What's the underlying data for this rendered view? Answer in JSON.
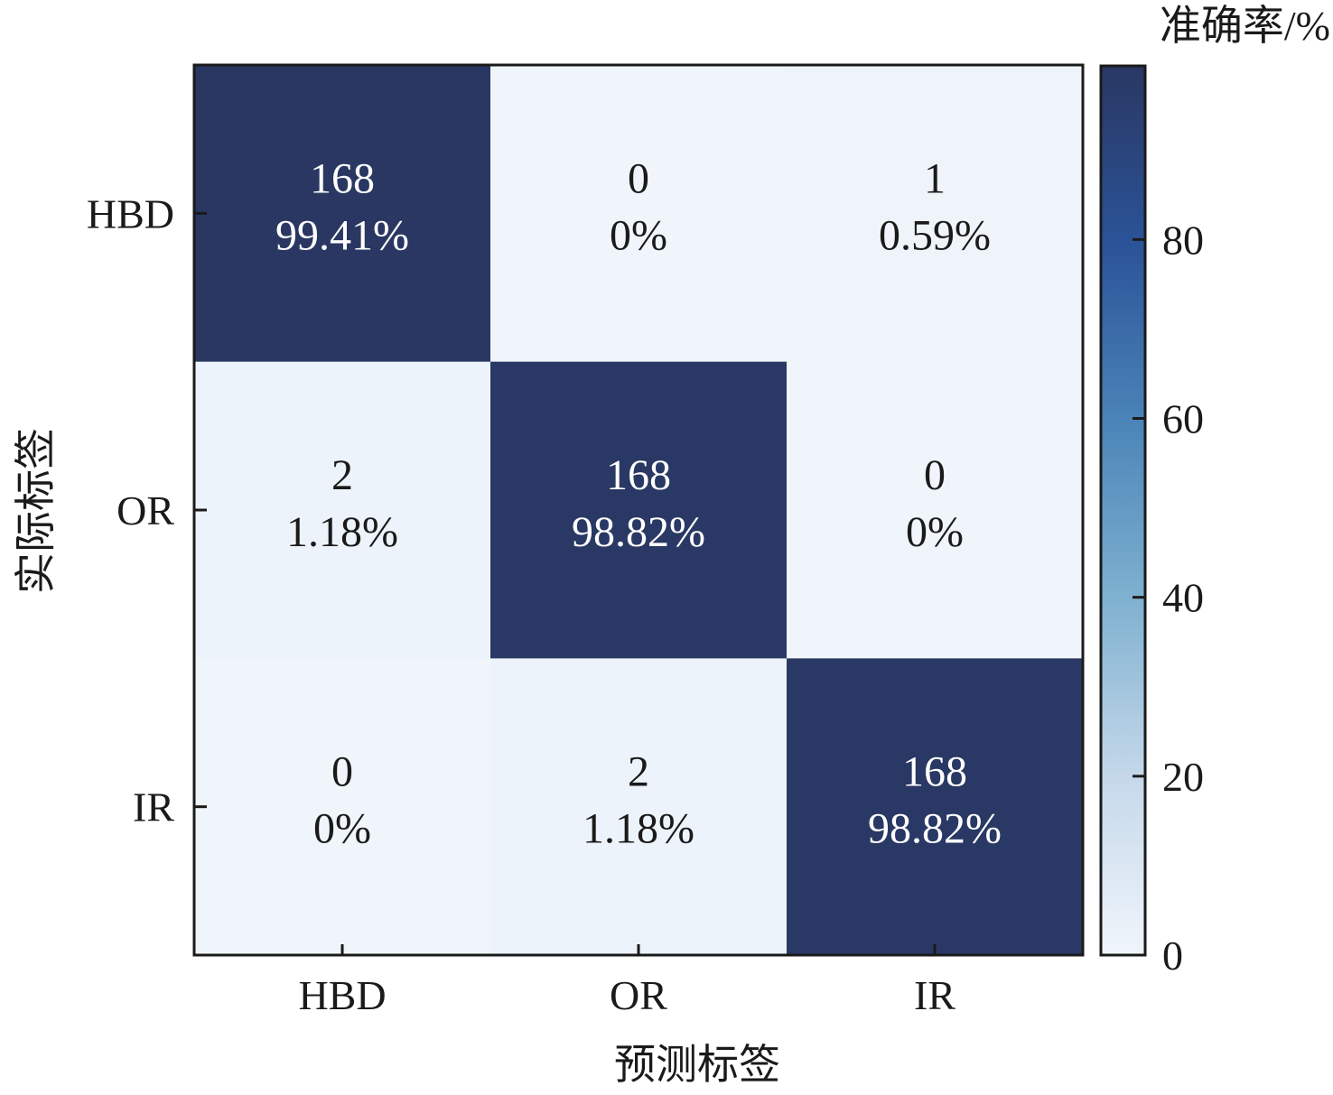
{
  "chart_data": {
    "type": "heatmap",
    "title": "",
    "xlabel": "预测标签",
    "ylabel": "实际标签",
    "x_categories": [
      "HBD",
      "OR",
      "IR"
    ],
    "y_categories": [
      "HBD",
      "OR",
      "IR"
    ],
    "counts": [
      [
        168,
        0,
        1
      ],
      [
        2,
        168,
        0
      ],
      [
        0,
        2,
        168
      ]
    ],
    "percent_labels": [
      [
        "99.41%",
        "0%",
        "0.59%"
      ],
      [
        "1.18%",
        "98.82%",
        "0%"
      ],
      [
        "0%",
        "1.18%",
        "98.82%"
      ]
    ],
    "percent_values": [
      [
        99.41,
        0,
        0.59
      ],
      [
        1.18,
        98.82,
        0
      ],
      [
        0,
        1.18,
        98.82
      ]
    ],
    "colorbar": {
      "label": "准确率/%",
      "range": [
        0,
        99.41
      ],
      "ticks": [
        0,
        20,
        40,
        60,
        80
      ],
      "tick_labels": [
        "0",
        "20",
        "40",
        "60",
        "80"
      ],
      "colors": [
        "#f0f5fb",
        "#c5d8ea",
        "#7fb1d0",
        "#4a84b8",
        "#2b5398",
        "#293762"
      ]
    },
    "grid": false
  }
}
